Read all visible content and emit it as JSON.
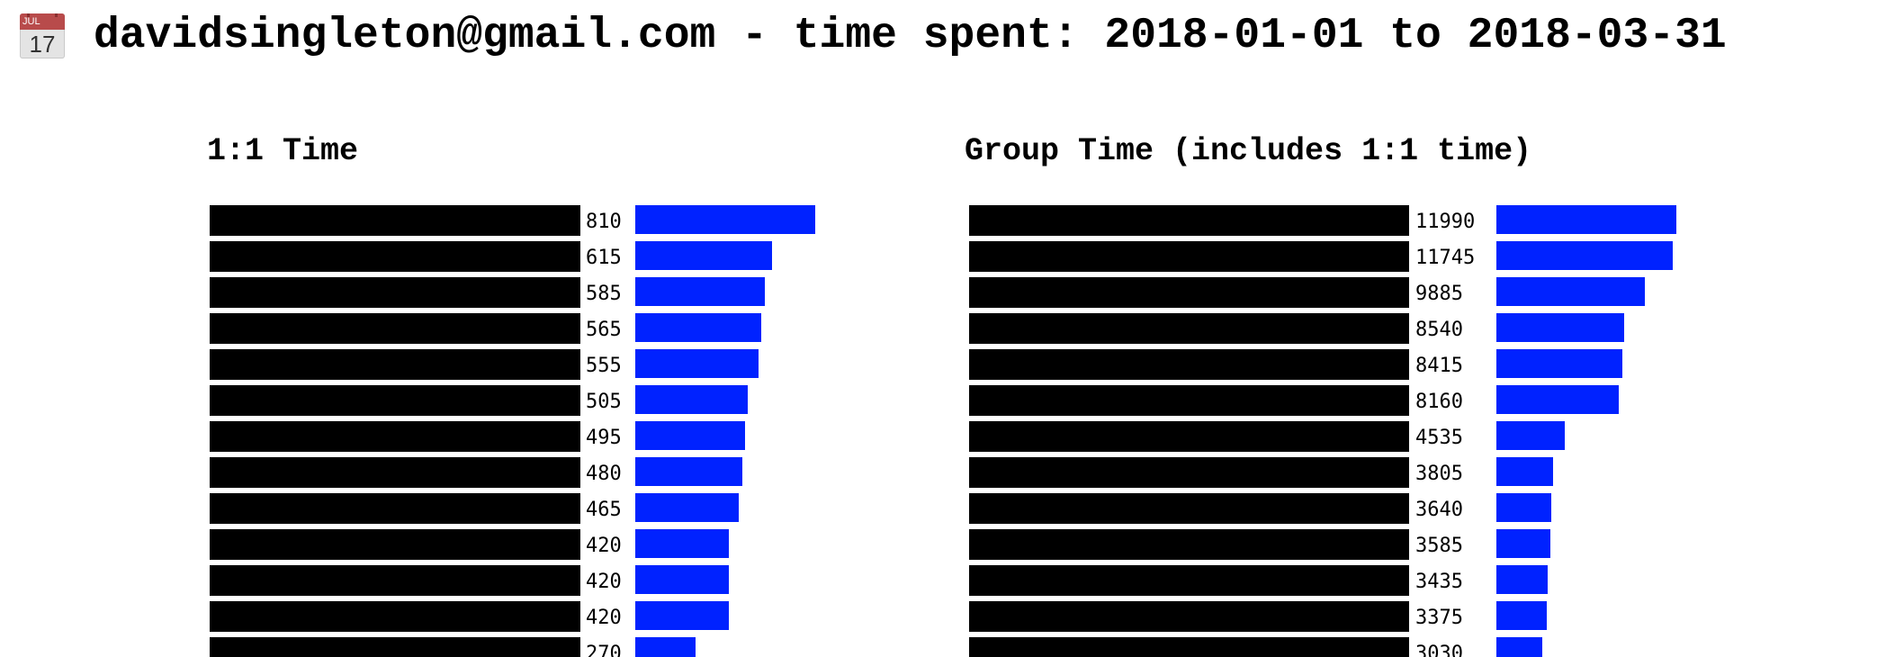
{
  "header": {
    "calendar_icon": "calendar-icon",
    "calendar_month": "JUL",
    "calendar_day": "17",
    "title": "davidsingleton@gmail.com - time spent: 2018-01-01 to 2018-03-31"
  },
  "colors": {
    "bar": "#0022ff",
    "redacted": "#000000"
  },
  "chart_data": [
    {
      "type": "bar",
      "orientation": "horizontal",
      "title": "1:1 Time",
      "categories_redacted": true,
      "values": [
        810,
        615,
        585,
        565,
        555,
        505,
        495,
        480,
        465,
        420,
        420,
        420,
        270
      ],
      "xlim": [
        0,
        810
      ]
    },
    {
      "type": "bar",
      "orientation": "horizontal",
      "title": "Group Time (includes 1:1 time)",
      "categories_redacted": true,
      "values": [
        11990,
        11745,
        9885,
        8540,
        8415,
        8160,
        4535,
        3805,
        3640,
        3585,
        3435,
        3375,
        3030
      ],
      "xlim": [
        0,
        11990
      ]
    }
  ]
}
